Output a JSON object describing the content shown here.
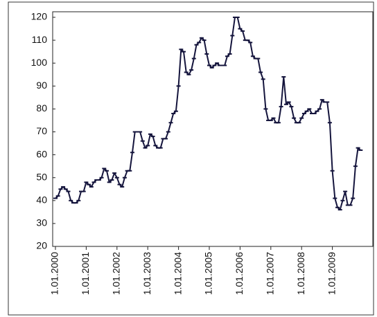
{
  "chart_data": {
    "type": "line",
    "categories": [
      "1.01.2000",
      null,
      null,
      null,
      null,
      null,
      null,
      null,
      null,
      null,
      null,
      null,
      "1.01.2001",
      null,
      null,
      null,
      null,
      null,
      null,
      null,
      null,
      null,
      null,
      null,
      "1.01.2002",
      null,
      null,
      null,
      null,
      null,
      null,
      null,
      null,
      null,
      null,
      null,
      "1.01.2003",
      null,
      null,
      null,
      null,
      null,
      null,
      null,
      null,
      null,
      null,
      null,
      "1.01.2004",
      null,
      null,
      null,
      null,
      null,
      null,
      null,
      null,
      null,
      null,
      null,
      "1.01.2005",
      null,
      null,
      null,
      null,
      null,
      null,
      null,
      null,
      null,
      null,
      null,
      "1.01.2006",
      null,
      null,
      null,
      null,
      null,
      null,
      null,
      null,
      null,
      null,
      null,
      "1.01.2007",
      null,
      null,
      null,
      null,
      null,
      null,
      null,
      null,
      null,
      null,
      null,
      "1.01.2008",
      null,
      null,
      null,
      null,
      null,
      null,
      null,
      null,
      null,
      null,
      null,
      "1.01.2009",
      null,
      null,
      null,
      null,
      null,
      null,
      null,
      null,
      null,
      null,
      null
    ],
    "values": [
      41,
      42,
      45,
      46,
      45,
      44,
      40,
      39,
      39,
      40,
      44,
      44,
      48,
      47,
      46,
      48,
      49,
      49,
      50,
      54,
      53,
      48,
      49,
      52,
      50,
      47,
      46,
      50,
      53,
      53,
      61,
      70,
      70,
      70,
      66,
      63,
      64,
      69,
      68,
      64,
      63,
      63,
      67,
      67,
      70,
      74,
      78,
      79,
      90,
      106,
      105,
      96,
      95,
      97,
      102,
      108,
      109,
      111,
      110,
      104,
      99,
      98,
      99,
      100,
      99,
      99,
      99,
      103,
      104,
      112,
      120,
      120,
      115,
      114,
      110,
      110,
      109,
      103,
      102,
      102,
      96,
      93,
      80,
      75,
      75,
      76,
      74,
      74,
      81,
      94,
      82,
      83,
      81,
      76,
      74,
      74,
      76,
      78,
      79,
      80,
      78,
      78,
      79,
      80,
      84,
      83,
      83,
      74,
      53,
      41,
      37,
      36,
      40,
      44,
      38,
      38,
      41,
      55,
      63,
      62
    ],
    "color": "#14143c",
    "ylim": [
      20,
      120
    ],
    "yticks": [
      20,
      30,
      40,
      50,
      60,
      70,
      80,
      90,
      100,
      110,
      120
    ],
    "grid": false
  }
}
